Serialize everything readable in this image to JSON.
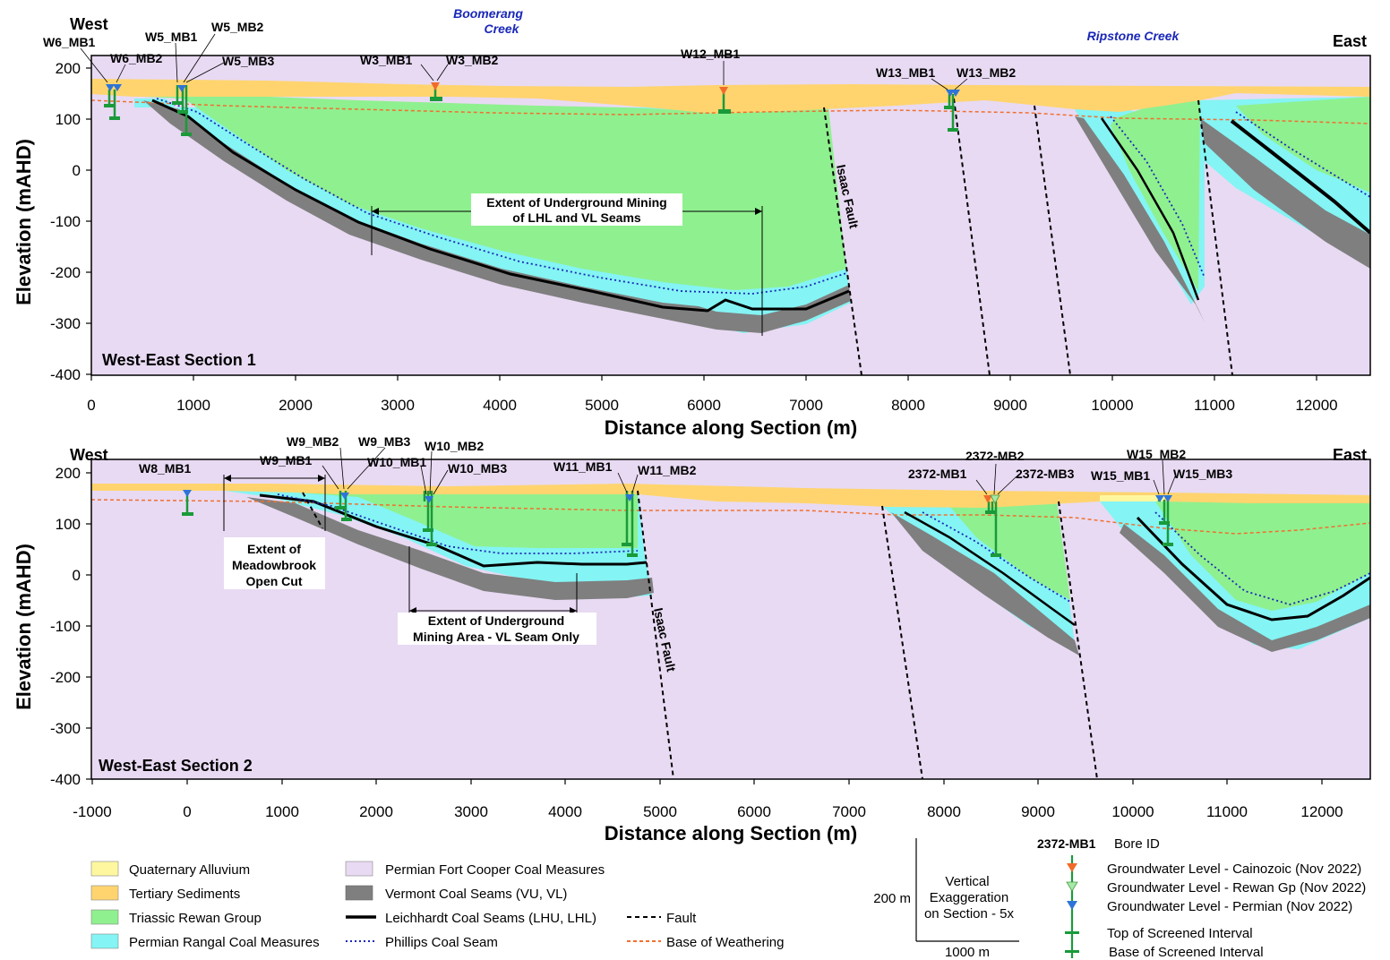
{
  "colors": {
    "alluvium": "#fff7a0",
    "tertiary": "#ffd46f",
    "rewan": "#8ff08f",
    "rangal": "#84f4f4",
    "fortcooper": "#e8daf3",
    "vermont": "#7f7f7f",
    "creek_text": "#1a27b8",
    "cainozoic_marker": "#f06b2b",
    "rewan_marker": "#a6e8a6",
    "permian_marker": "#2e74d8",
    "screen": "#1a9a3a",
    "weathering": "#f07030"
  },
  "axis_labels": {
    "y": "Elevation (mAHD)",
    "x": "Distance along Section (m)"
  },
  "section1": {
    "title": "West-East Section 1",
    "west": "West",
    "east": "East",
    "creeks": [
      {
        "name_lines": [
          "Boomerang",
          "Creek"
        ]
      },
      {
        "name_lines": [
          "Ripstone Creek"
        ]
      }
    ],
    "y_ticks": [
      "200",
      "100",
      "0",
      "-100",
      "-200",
      "-300",
      "-400"
    ],
    "x_ticks": [
      "0",
      "1000",
      "2000",
      "3000",
      "4000",
      "5000",
      "6000",
      "7000",
      "8000",
      "9000",
      "10000",
      "11000",
      "12000"
    ],
    "fault_label": "Isaac Fault",
    "mining_extent": [
      "Extent of Underground Mining",
      "of LHL and VL Seams"
    ],
    "bores": [
      "W6_MB1",
      "W6_MB2",
      "W5_MB1",
      "W5_MB2",
      "W5_MB3",
      "W3_MB1",
      "W3_MB2",
      "W12_MB1",
      "W13_MB1",
      "W13_MB2"
    ]
  },
  "section2": {
    "title": "West-East Section 2",
    "west": "West",
    "east": "East",
    "y_ticks": [
      "200",
      "100",
      "0",
      "-100",
      "-200",
      "-300",
      "-400"
    ],
    "x_ticks": [
      "-1000",
      "0",
      "1000",
      "2000",
      "3000",
      "4000",
      "5000",
      "6000",
      "7000",
      "8000",
      "9000",
      "10000",
      "11000",
      "12000"
    ],
    "fault_label": "Isaac Fault",
    "open_cut_extent": [
      "Extent of",
      "Meadowbrook",
      "Open Cut"
    ],
    "mining_extent": [
      "Extent of Underground",
      "Mining Area - VL Seam Only"
    ],
    "bores": [
      "W8_MB1",
      "W9_MB1",
      "W9_MB2",
      "W9_MB3",
      "W10_MB1",
      "W10_MB2",
      "W10_MB3",
      "W11_MB1",
      "W11_MB2",
      "2372-MB1",
      "2372-MB2",
      "2372-MB3",
      "W15_MB1",
      "W15_MB2",
      "W15_MB3"
    ]
  },
  "legend": {
    "layers": [
      "Quaternary Alluvium",
      "Tertiary Sediments",
      "Triassic Rewan Group",
      "Permian Rangal Coal Measures",
      "Permian Fort Cooper Coal Measures",
      "Vermont Coal Seams (VU, VL)",
      "Leichhardt Coal Seams (LHU, LHL)",
      "Phillips Coal Seam"
    ],
    "lines": [
      "Fault",
      "Base of Weathering"
    ],
    "scale": {
      "vertical": "200 m",
      "horizontal": "1000 m",
      "note_lines": [
        "Vertical",
        "Exaggeration",
        "on Section - 5x"
      ]
    },
    "bore_key": {
      "example_id": "2372-MB1",
      "id_label": "Bore ID",
      "items": [
        "Groundwater Level - Cainozoic (Nov 2022)",
        "Groundwater Level - Rewan Gp (Nov 2022)",
        "Groundwater Level - Permian (Nov 2022)",
        "Top of Screened Interval",
        "Base of Screened Interval"
      ]
    }
  }
}
